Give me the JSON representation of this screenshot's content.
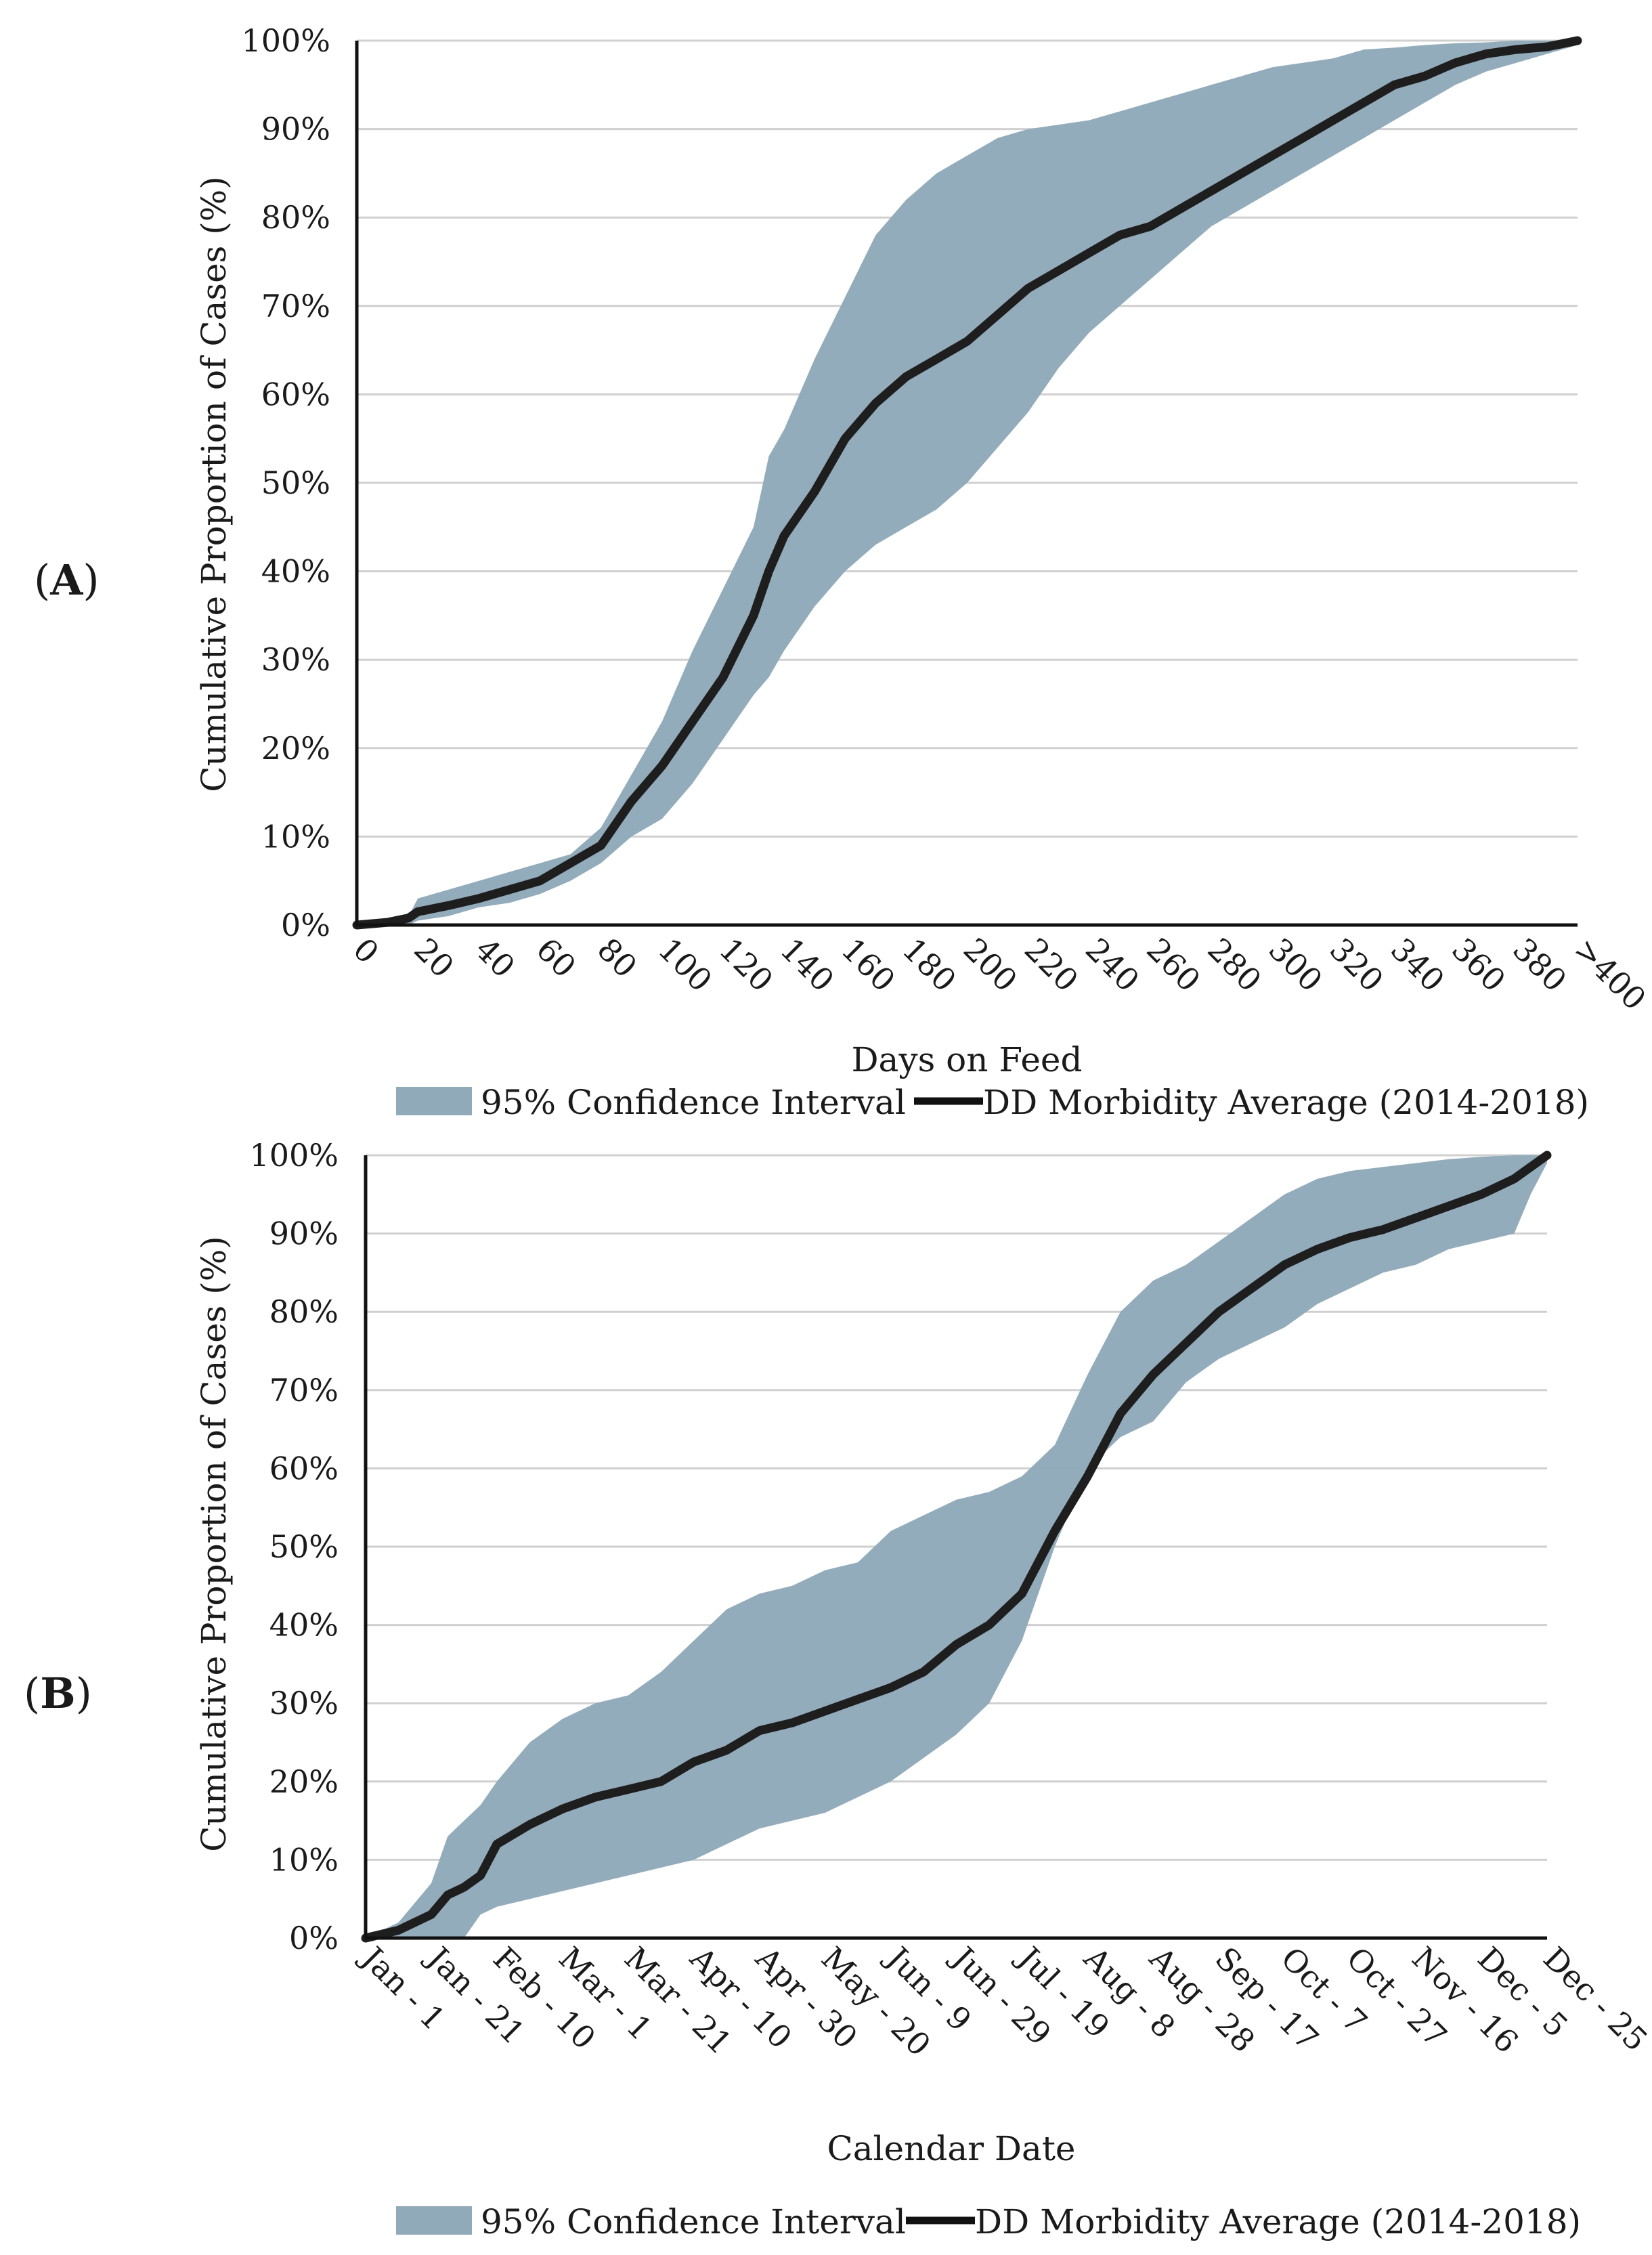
{
  "chart_data": [
    {
      "panel": "(A)",
      "panel_letter": "A",
      "type": "line",
      "xlabel": "Days on Feed",
      "ylabel": "Cumulative Proportion of Cases (%)",
      "x_ticks": [
        "0",
        "20",
        "40",
        "60",
        "80",
        "100",
        "120",
        "140",
        "160",
        "180",
        "200",
        "220",
        "240",
        "260",
        "280",
        "300",
        "320",
        "340",
        "360",
        "380",
        ">400"
      ],
      "y_ticks": [
        "0%",
        "10%",
        "20%",
        "30%",
        "40%",
        "50%",
        "60%",
        "70%",
        "80%",
        "90%",
        "100%"
      ],
      "xlim": [
        0,
        400
      ],
      "ylim": [
        0,
        100
      ],
      "grid": true,
      "legend": {
        "position": "bottom",
        "ci_label": "95% Confidence Interval",
        "avg_label": "DD Morbidity Average (2014-2018)"
      },
      "series": [
        {
          "name": "DD Morbidity Average (2014-2018)",
          "x": [
            0,
            10,
            17,
            20,
            30,
            40,
            50,
            60,
            70,
            80,
            90,
            100,
            110,
            120,
            130,
            135,
            140,
            150,
            160,
            170,
            180,
            190,
            200,
            210,
            220,
            230,
            240,
            250,
            260,
            270,
            280,
            290,
            300,
            310,
            320,
            330,
            340,
            350,
            360,
            370,
            380,
            390,
            400
          ],
          "y": [
            0,
            0.3,
            0.8,
            1.5,
            2.2,
            3,
            4,
            5,
            7,
            9,
            14,
            18,
            23,
            28,
            35,
            40,
            44,
            49,
            55,
            59,
            62,
            64,
            66,
            69,
            72,
            74,
            76,
            78,
            79,
            81,
            83,
            85,
            87,
            89,
            91,
            93,
            95,
            96,
            97.5,
            98.5,
            99,
            99.3,
            100
          ]
        },
        {
          "name": "95% Confidence Interval (upper)",
          "x": [
            0,
            10,
            17,
            20,
            30,
            40,
            50,
            60,
            70,
            80,
            90,
            100,
            110,
            120,
            130,
            135,
            140,
            150,
            160,
            170,
            180,
            190,
            200,
            210,
            220,
            230,
            240,
            250,
            260,
            270,
            280,
            290,
            300,
            310,
            320,
            330,
            340,
            350,
            360,
            370,
            380,
            390,
            400
          ],
          "y": [
            0,
            0.5,
            1,
            3,
            4,
            5,
            6,
            7,
            8,
            11,
            17,
            23,
            31,
            38,
            45,
            53,
            56,
            64,
            71,
            78,
            82,
            85,
            87,
            89,
            90,
            90.5,
            91,
            92,
            93,
            94,
            95,
            96,
            97,
            97.5,
            98,
            99,
            99.2,
            99.5,
            99.7,
            99.8,
            100,
            100,
            100
          ]
        },
        {
          "name": "95% Confidence Interval (lower)",
          "x": [
            0,
            10,
            17,
            20,
            30,
            40,
            50,
            60,
            70,
            80,
            90,
            100,
            110,
            120,
            130,
            135,
            140,
            150,
            160,
            170,
            180,
            190,
            200,
            210,
            220,
            230,
            240,
            250,
            260,
            270,
            280,
            290,
            300,
            310,
            320,
            330,
            340,
            350,
            360,
            370,
            380,
            390,
            400
          ],
          "y": [
            0,
            0,
            0,
            0.5,
            1,
            2,
            2.5,
            3.5,
            5,
            7,
            10,
            12,
            16,
            21,
            26,
            28,
            31,
            36,
            40,
            43,
            45,
            47,
            50,
            54,
            58,
            63,
            67,
            70,
            73,
            76,
            79,
            81,
            83,
            85,
            87,
            89,
            91,
            93,
            95,
            96.5,
            97.5,
            98.5,
            99.5
          ]
        }
      ]
    },
    {
      "panel": "(B)",
      "panel_letter": "B",
      "type": "line",
      "xlabel": "Calendar Date",
      "ylabel": "Cumulative Proportion of Cases (%)",
      "x_ticks": [
        "Jan - 1",
        "Jan - 21",
        "Feb - 10",
        "Mar - 1",
        "Mar - 21",
        "Apr - 10",
        "Apr - 30",
        "May - 20",
        "Jun - 9",
        "Jun - 29",
        "Jul - 19",
        "Aug - 8",
        "Aug - 28",
        "Sep - 17",
        "Oct - 7",
        "Oct - 27",
        "Nov - 16",
        "Dec - 5",
        "Dec - 25"
      ],
      "y_ticks": [
        "0%",
        "10%",
        "20%",
        "30%",
        "40%",
        "50%",
        "60%",
        "70%",
        "80%",
        "90%",
        "100%"
      ],
      "xlim": [
        0,
        360
      ],
      "ylim": [
        0,
        100
      ],
      "grid": true,
      "legend": {
        "position": "bottom",
        "ci_label": "95% Confidence Interval",
        "avg_label": "DD Morbidity Average (2014-2018)"
      },
      "series": [
        {
          "name": "DD Morbidity Average (2014-2018)",
          "x": [
            0,
            10,
            20,
            25,
            30,
            35,
            40,
            50,
            60,
            70,
            80,
            90,
            100,
            110,
            120,
            130,
            140,
            150,
            160,
            170,
            180,
            190,
            200,
            210,
            220,
            230,
            240,
            250,
            260,
            270,
            280,
            290,
            300,
            310,
            320,
            330,
            340,
            350,
            355,
            360
          ],
          "y": [
            0,
            1,
            3,
            5.5,
            6.5,
            8,
            12,
            14.5,
            16.5,
            18,
            19,
            20,
            22.5,
            24,
            26.5,
            27.5,
            29,
            30.5,
            32,
            34,
            37.5,
            40,
            44,
            52,
            59,
            67,
            72,
            76,
            80,
            83,
            86,
            88,
            89.5,
            90.5,
            92,
            93.5,
            95,
            97,
            98.5,
            100
          ]
        },
        {
          "name": "95% Confidence Interval (upper)",
          "x": [
            0,
            10,
            20,
            25,
            30,
            35,
            40,
            50,
            60,
            70,
            80,
            90,
            100,
            110,
            120,
            130,
            140,
            150,
            160,
            170,
            180,
            190,
            200,
            210,
            220,
            230,
            240,
            250,
            260,
            270,
            280,
            290,
            300,
            310,
            320,
            330,
            340,
            350,
            355,
            360
          ],
          "y": [
            0,
            2,
            7,
            13,
            15,
            17,
            20,
            25,
            28,
            30,
            31,
            34,
            38,
            42,
            44,
            45,
            47,
            48,
            52,
            54,
            56,
            57,
            59,
            63,
            72,
            80,
            84,
            86,
            89,
            92,
            95,
            97,
            98,
            98.5,
            99,
            99.5,
            99.8,
            100,
            100,
            100
          ]
        },
        {
          "name": "95% Confidence Interval (lower)",
          "x": [
            0,
            10,
            20,
            25,
            30,
            35,
            40,
            50,
            60,
            70,
            80,
            90,
            100,
            110,
            120,
            130,
            140,
            150,
            160,
            170,
            180,
            190,
            200,
            210,
            220,
            230,
            240,
            250,
            260,
            270,
            280,
            290,
            300,
            310,
            320,
            330,
            340,
            350,
            355,
            360
          ],
          "y": [
            0,
            0,
            0,
            0,
            0,
            3,
            4,
            5,
            6,
            7,
            8,
            9,
            10,
            12,
            14,
            15,
            16,
            18,
            20,
            23,
            26,
            30,
            38,
            50,
            60,
            64,
            66,
            71,
            74,
            76,
            78,
            81,
            83,
            85,
            86,
            88,
            89,
            90,
            95,
            99
          ]
        }
      ]
    }
  ],
  "colors": {
    "band": "#91aaba",
    "line": "#1e1e1e",
    "grid": "#d0d0d0"
  }
}
